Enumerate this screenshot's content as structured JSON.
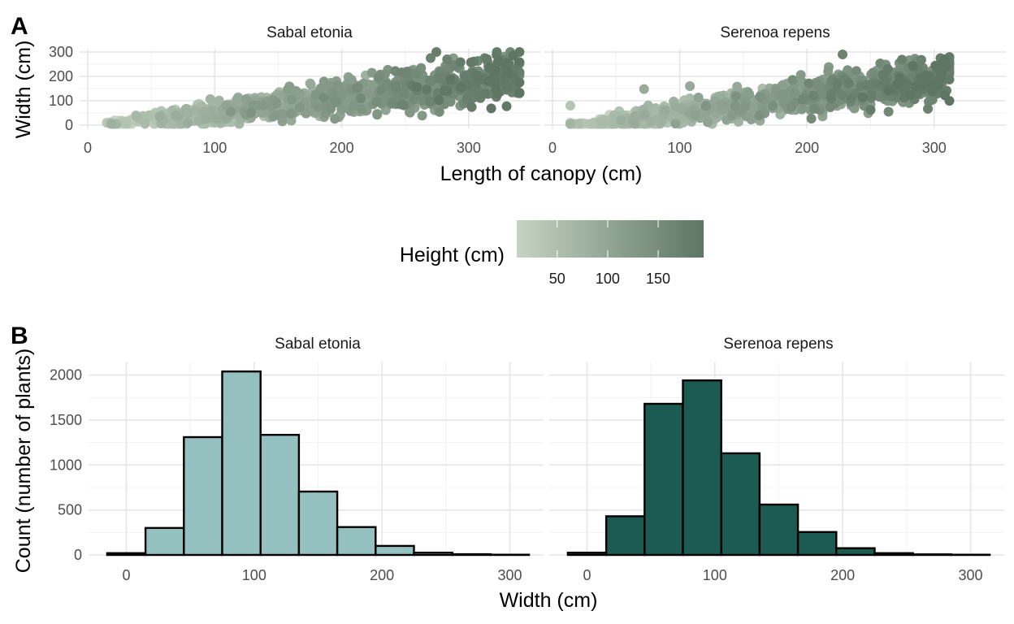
{
  "panel_tags": {
    "a": "A",
    "b": "B"
  },
  "chart_data": [
    {
      "type": "scatter",
      "tag": "A",
      "xlabel": "Length of canopy (cm)",
      "ylabel": "Width (cm)",
      "xlim": [
        0,
        350
      ],
      "ylim": [
        0,
        300
      ],
      "x_ticks": [
        0,
        100,
        200,
        300
      ],
      "y_ticks": [
        0,
        100,
        200,
        300
      ],
      "grid": true,
      "color_legend": {
        "title": "Height (cm)",
        "position": "bottom",
        "range": [
          10,
          195
        ],
        "ticks": [
          50,
          100,
          150
        ],
        "low_color": "#c5d4c3",
        "high_color": "#5e7564"
      },
      "facets": [
        {
          "name": "Sabal etonia",
          "x_range": [
            15,
            340
          ],
          "y_range": [
            5,
            300
          ],
          "highlights": [
            {
              "x": 340,
              "y": 300,
              "h": 190
            },
            {
              "x": 322,
              "y": 288,
              "h": 185
            },
            {
              "x": 323,
              "y": 260,
              "h": 185
            },
            {
              "x": 330,
              "y": 145,
              "h": 175
            },
            {
              "x": 312,
              "y": 195,
              "h": 180
            },
            {
              "x": 283,
              "y": 270,
              "h": 170
            },
            {
              "x": 270,
              "y": 275,
              "h": 170
            }
          ]
        },
        {
          "name": "Serenoa repens",
          "x_range": [
            14,
            312
          ],
          "y_range": [
            5,
            290
          ],
          "highlights": [
            {
              "x": 14,
              "y": 80,
              "h": 40
            },
            {
              "x": 72,
              "y": 148,
              "h": 90
            },
            {
              "x": 108,
              "y": 160,
              "h": 95
            },
            {
              "x": 228,
              "y": 290,
              "h": 170
            },
            {
              "x": 312,
              "y": 248,
              "h": 180
            },
            {
              "x": 303,
              "y": 172,
              "h": 175
            },
            {
              "x": 305,
              "y": 275,
              "h": 180
            }
          ]
        }
      ]
    },
    {
      "type": "bar",
      "tag": "B",
      "xlabel": "Width (cm)",
      "ylabel": "Count (number of plants)",
      "xlim": [
        -20,
        320
      ],
      "ylim": [
        0,
        2150
      ],
      "x_ticks": [
        0,
        100,
        200,
        300
      ],
      "y_ticks": [
        0,
        500,
        1000,
        1500,
        2000
      ],
      "grid": true,
      "bin_width": 30,
      "bin_centers": [
        0,
        30,
        60,
        90,
        120,
        150,
        180,
        210,
        240,
        270,
        300
      ],
      "facets": [
        {
          "name": "Sabal etonia",
          "color": "#94c1bf",
          "values": [
            20,
            300,
            1310,
            2040,
            1335,
            705,
            310,
            100,
            25,
            8,
            3
          ]
        },
        {
          "name": "Serenoa repens",
          "color": "#1b5b52",
          "values": [
            25,
            430,
            1680,
            1940,
            1130,
            560,
            255,
            75,
            20,
            6,
            3
          ]
        }
      ]
    }
  ]
}
